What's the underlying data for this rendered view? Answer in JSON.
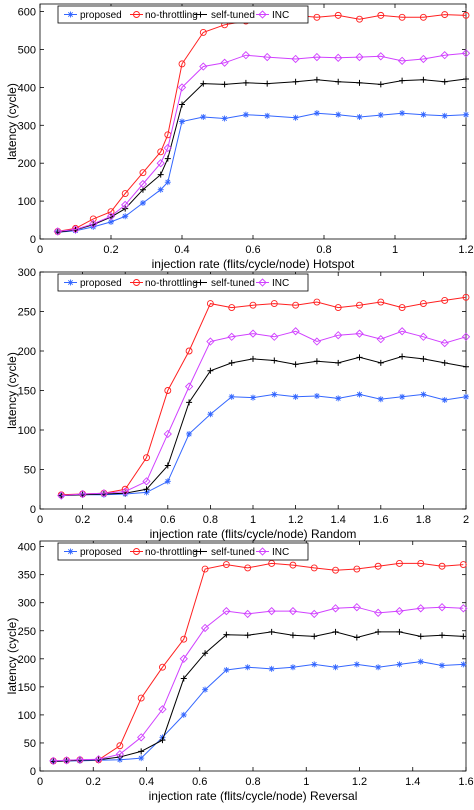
{
  "colors": {
    "proposed": "#3366ff",
    "no_throttling": "#ff2020",
    "self_tuned": "#000000",
    "inc": "#d040ff"
  },
  "chart_data": [
    {
      "type": "line",
      "xlabel": "injection rate (flits/cycle/node)   Hotspot",
      "ylabel": "latency (cycle)",
      "xlim": [
        0,
        1.2
      ],
      "ylim": [
        0,
        620
      ],
      "xticks": [
        0,
        0.2,
        0.4,
        0.6,
        0.8,
        1,
        1.2
      ],
      "xtick_labels": [
        "0",
        "0.2",
        "0.4",
        "0.6",
        "0.8",
        "1",
        "1.2"
      ],
      "yticks": [
        0,
        100,
        200,
        300,
        400,
        500,
        600
      ],
      "ytick_labels": [
        "0",
        "100",
        "200",
        "300",
        "400",
        "500",
        "600"
      ],
      "legend_placement": "top-left",
      "x": [
        0.05,
        0.1,
        0.15,
        0.2,
        0.24,
        0.29,
        0.34,
        0.36,
        0.4,
        0.46,
        0.52,
        0.58,
        0.64,
        0.72,
        0.78,
        0.84,
        0.9,
        0.96,
        1.02,
        1.08,
        1.14,
        1.2
      ],
      "series": [
        {
          "name": "proposed",
          "marker": "asterisk",
          "color": "#3366ff",
          "values": [
            18,
            22,
            32,
            45,
            60,
            95,
            130,
            150,
            310,
            322,
            318,
            328,
            325,
            320,
            332,
            328,
            322,
            327,
            332,
            328,
            325,
            328
          ]
        },
        {
          "name": "no-throttling",
          "marker": "circle",
          "color": "#ff2020",
          "values": [
            20,
            28,
            53,
            72,
            120,
            175,
            230,
            275,
            462,
            545,
            565,
            575,
            580,
            590,
            585,
            590,
            580,
            590,
            585,
            585,
            592,
            590
          ]
        },
        {
          "name": "self-tuned",
          "marker": "plus",
          "color": "#000000",
          "values": [
            18,
            24,
            38,
            58,
            80,
            130,
            170,
            212,
            355,
            410,
            408,
            412,
            410,
            415,
            420,
            415,
            412,
            408,
            418,
            420,
            415,
            422
          ]
        },
        {
          "name": "INC",
          "marker": "diamond",
          "color": "#d040ff",
          "values": [
            20,
            25,
            40,
            60,
            90,
            145,
            200,
            240,
            400,
            455,
            465,
            485,
            480,
            475,
            480,
            478,
            480,
            482,
            470,
            475,
            485,
            490
          ]
        }
      ]
    },
    {
      "type": "line",
      "xlabel": "injection rate (flits/cycle/node)   Random",
      "ylabel": "latency (cycle)",
      "xlim": [
        0,
        2
      ],
      "ylim": [
        0,
        300
      ],
      "xticks": [
        0,
        0.2,
        0.4,
        0.6,
        0.8,
        1,
        1.2,
        1.4,
        1.6,
        1.8,
        2
      ],
      "xtick_labels": [
        "0",
        "0.2",
        "0.4",
        "0.6",
        "0.8",
        "1",
        "1.2",
        "1.4",
        "1.6",
        "1.8",
        "2"
      ],
      "yticks": [
        0,
        50,
        100,
        150,
        200,
        250,
        300
      ],
      "ytick_labels": [
        "0",
        "50",
        "100",
        "150",
        "200",
        "250",
        "300"
      ],
      "legend_placement": "top-left",
      "x": [
        0.1,
        0.2,
        0.3,
        0.4,
        0.5,
        0.6,
        0.7,
        0.8,
        0.9,
        1.0,
        1.1,
        1.2,
        1.3,
        1.4,
        1.5,
        1.6,
        1.7,
        1.8,
        1.9,
        2.0
      ],
      "series": [
        {
          "name": "proposed",
          "marker": "asterisk",
          "color": "#3366ff",
          "values": [
            17,
            18,
            18,
            19,
            21,
            35,
            95,
            120,
            142,
            141,
            145,
            142,
            143,
            140,
            145,
            139,
            142,
            145,
            138,
            142
          ]
        },
        {
          "name": "no-throttling",
          "marker": "circle",
          "color": "#ff2020",
          "values": [
            18,
            19,
            20,
            25,
            65,
            150,
            200,
            260,
            255,
            258,
            260,
            258,
            262,
            255,
            258,
            262,
            255,
            260,
            264,
            268
          ]
        },
        {
          "name": "self-tuned",
          "marker": "plus",
          "color": "#000000",
          "values": [
            17,
            18,
            19,
            20,
            25,
            55,
            135,
            175,
            185,
            190,
            188,
            183,
            187,
            185,
            192,
            185,
            193,
            190,
            185,
            180
          ]
        },
        {
          "name": "INC",
          "marker": "diamond",
          "color": "#d040ff",
          "values": [
            17,
            19,
            20,
            22,
            35,
            95,
            155,
            212,
            218,
            222,
            218,
            225,
            212,
            220,
            222,
            215,
            225,
            218,
            210,
            218
          ]
        }
      ]
    },
    {
      "type": "line",
      "xlabel": "injection rate (flits/cycle/node)   Reversal",
      "ylabel": "latency (cycle)",
      "xlim": [
        0,
        1.6
      ],
      "ylim": [
        0,
        410
      ],
      "xticks": [
        0,
        0.2,
        0.4,
        0.6,
        0.8,
        1,
        1.2,
        1.4,
        1.6
      ],
      "xtick_labels": [
        "0",
        "0.2",
        "0.4",
        "0.6",
        "0.8",
        "1",
        "1.2",
        "1.4",
        "1.6"
      ],
      "yticks": [
        0,
        50,
        100,
        150,
        200,
        250,
        300,
        350,
        400
      ],
      "ytick_labels": [
        "0",
        "50",
        "100",
        "150",
        "200",
        "250",
        "300",
        "350",
        "400"
      ],
      "legend_placement": "top-left",
      "x": [
        0.05,
        0.1,
        0.15,
        0.22,
        0.3,
        0.38,
        0.46,
        0.54,
        0.62,
        0.7,
        0.78,
        0.87,
        0.95,
        1.03,
        1.11,
        1.19,
        1.27,
        1.35,
        1.43,
        1.51,
        1.59
      ],
      "series": [
        {
          "name": "proposed",
          "marker": "asterisk",
          "color": "#3366ff",
          "values": [
            17,
            18,
            18,
            19,
            20,
            23,
            60,
            100,
            145,
            180,
            185,
            182,
            185,
            190,
            185,
            190,
            185,
            190,
            195,
            188,
            190
          ]
        },
        {
          "name": "no-throttling",
          "marker": "circle",
          "color": "#ff2020",
          "values": [
            18,
            19,
            20,
            20,
            45,
            130,
            185,
            235,
            360,
            368,
            362,
            370,
            367,
            362,
            358,
            360,
            365,
            370,
            370,
            365,
            368
          ]
        },
        {
          "name": "self-tuned",
          "marker": "plus",
          "color": "#000000",
          "values": [
            17,
            18,
            19,
            20,
            25,
            35,
            55,
            165,
            210,
            243,
            242,
            248,
            242,
            240,
            248,
            238,
            248,
            248,
            240,
            242,
            240
          ]
        },
        {
          "name": "INC",
          "marker": "diamond",
          "color": "#d040ff",
          "values": [
            18,
            19,
            20,
            21,
            30,
            60,
            110,
            200,
            255,
            285,
            280,
            285,
            285,
            280,
            290,
            292,
            282,
            285,
            290,
            292,
            290
          ]
        }
      ]
    }
  ]
}
